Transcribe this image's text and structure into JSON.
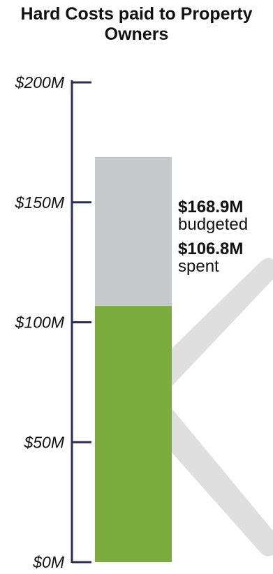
{
  "chart_data": {
    "type": "bar",
    "title": "Hard Costs paid to Property Owners",
    "ylim": [
      0,
      200
    ],
    "yticks": [
      {
        "value": 0,
        "label": "$0M"
      },
      {
        "value": 50,
        "label": "$50M"
      },
      {
        "value": 100,
        "label": "$100M"
      },
      {
        "value": 150,
        "label": "$150M"
      },
      {
        "value": 200,
        "label": "$200M"
      }
    ],
    "series": [
      {
        "value": 168.9,
        "value_text": "$168.9M",
        "label": "budgeted",
        "color": "#c6c8ca"
      },
      {
        "value": 106.8,
        "value_text": "$106.8M",
        "label": "spent",
        "color": "#7cab3e"
      }
    ],
    "axis_color": "#2a2c5a",
    "grid": false
  }
}
